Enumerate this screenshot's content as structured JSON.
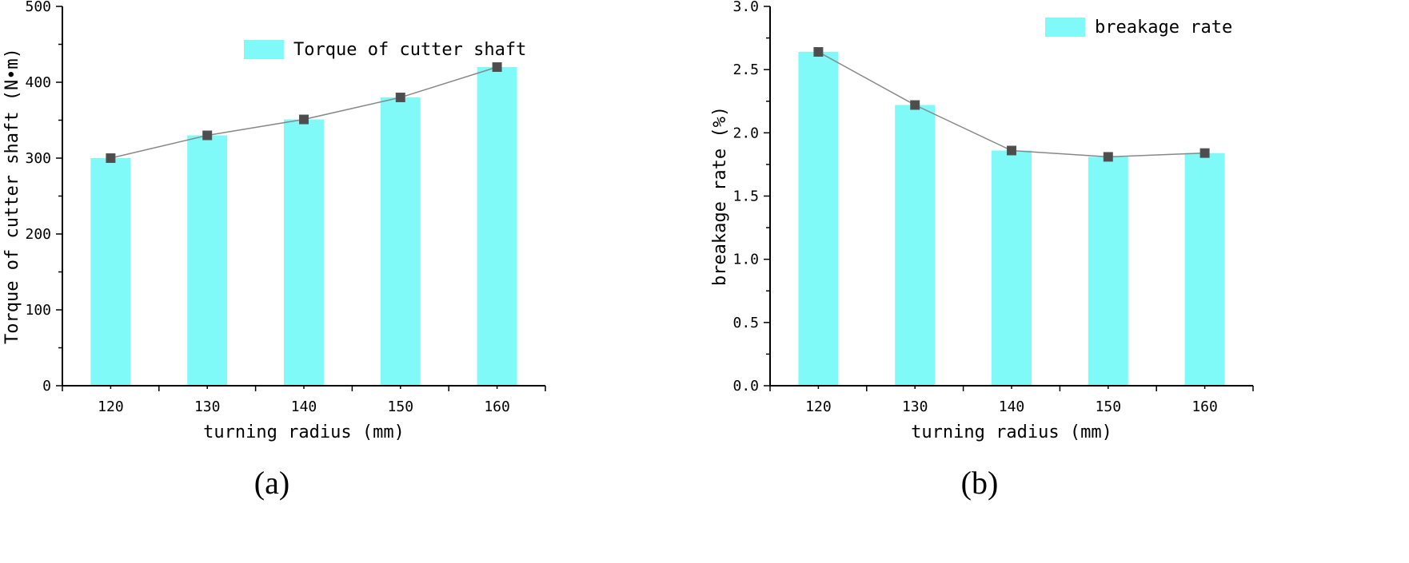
{
  "colors": {
    "bar": "#80F9F9",
    "marker": "#4D4D4D",
    "line": "#888888"
  },
  "chart_data": [
    {
      "type": "bar",
      "panel_label": "(a)",
      "categories": [
        "120",
        "130",
        "140",
        "150",
        "160"
      ],
      "series": [
        {
          "name": "Torque of cutter shaft",
          "values": [
            300,
            330,
            351,
            380,
            420
          ]
        }
      ],
      "overlay_line": true,
      "xlabel": "turning radius (mm)",
      "ylabel": "Torque of cutter shaft (N•m)",
      "ylim": [
        0,
        500
      ],
      "yticks": [
        "0",
        "100",
        "200",
        "300",
        "400",
        "500"
      ],
      "legend_position": "top-right",
      "grid": false
    },
    {
      "type": "bar",
      "panel_label": "(b)",
      "categories": [
        "120",
        "130",
        "140",
        "150",
        "160"
      ],
      "series": [
        {
          "name": "breakage rate",
          "values": [
            2.64,
            2.22,
            1.86,
            1.81,
            1.84
          ]
        }
      ],
      "overlay_line": true,
      "xlabel": "turning radius (mm)",
      "ylabel": "breakage rate (%)",
      "ylim": [
        0,
        3.0
      ],
      "yticks": [
        "0.0",
        "0.5",
        "1.0",
        "1.5",
        "2.0",
        "2.5",
        "3.0"
      ],
      "legend_position": "top-right",
      "grid": false
    }
  ]
}
